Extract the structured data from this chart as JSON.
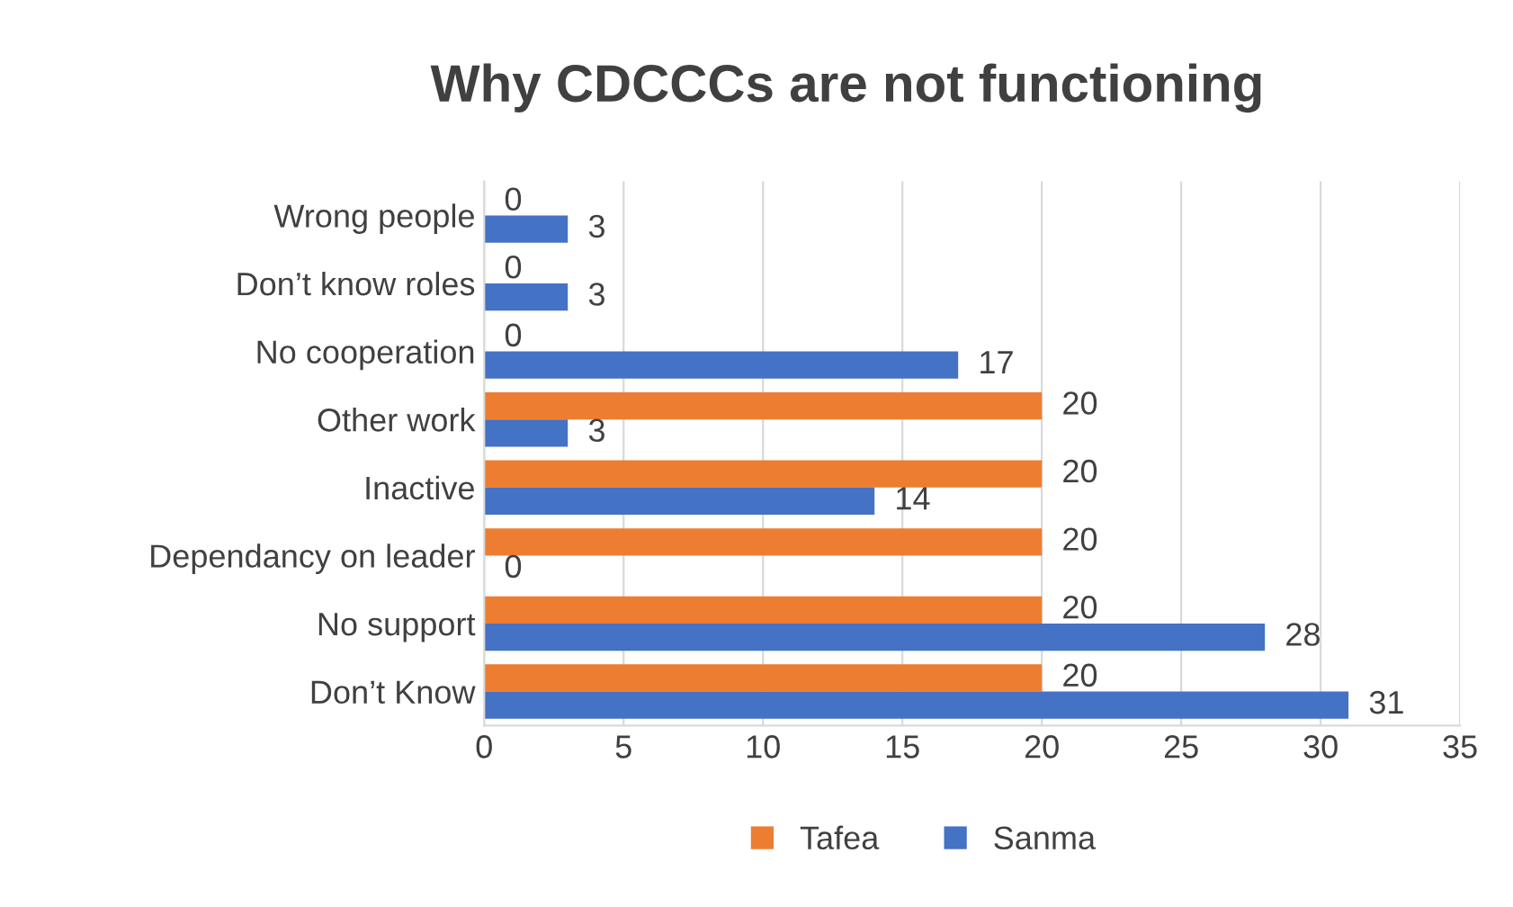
{
  "chart_data": {
    "type": "bar",
    "orientation": "horizontal",
    "title": "Why CDCCCs are not functioning",
    "categories": [
      "Wrong people",
      "Don’t know roles",
      "No cooperation",
      "Other work",
      "Inactive",
      "Dependancy on leader",
      "No support",
      "Don’t Know"
    ],
    "series": [
      {
        "name": "Tafea",
        "color": "#ed7d31",
        "values": [
          0,
          0,
          0,
          20,
          20,
          20,
          20,
          20
        ]
      },
      {
        "name": "Sanma",
        "color": "#4472c4",
        "values": [
          3,
          3,
          17,
          3,
          14,
          0,
          28,
          31
        ]
      }
    ],
    "xlim": [
      0,
      35
    ],
    "xticks": [
      0,
      5,
      10,
      15,
      20,
      25,
      30,
      35
    ],
    "grid": "x",
    "legend": "bottom",
    "data_labels": true
  }
}
